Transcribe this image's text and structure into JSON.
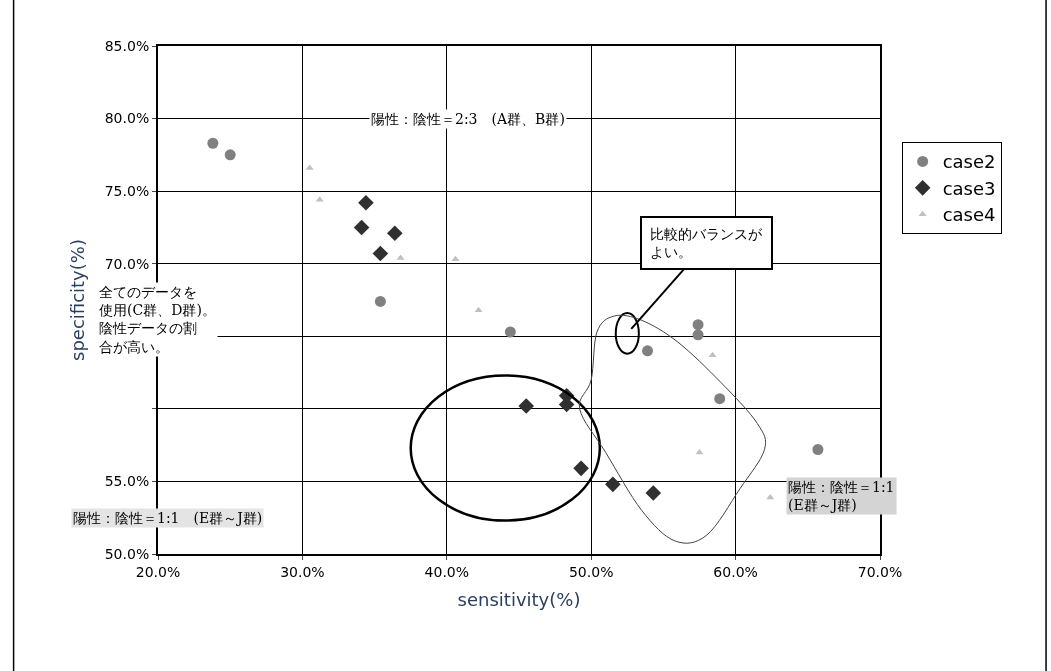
{
  "chart_data": {
    "type": "scatter",
    "xlabel": "sensitivity(%)",
    "ylabel": "specificity(%)",
    "xlim": [
      20,
      70
    ],
    "xticks": [
      {
        "value": 20,
        "label": "20.0%"
      },
      {
        "value": 30,
        "label": "30.0%"
      },
      {
        "value": 40,
        "label": "40.0%"
      },
      {
        "value": 50,
        "label": "50.0%"
      },
      {
        "value": 60,
        "label": "60.0%"
      },
      {
        "value": 70,
        "label": "70.0%"
      }
    ],
    "ylim": [
      50,
      85
    ],
    "yticks": [
      {
        "value": 50,
        "label": "50.0%"
      },
      {
        "value": 55,
        "label": "55.0%"
      },
      {
        "value": 60,
        "label": null
      },
      {
        "value": 65,
        "label": null
      },
      {
        "value": 70,
        "label": "70.0%"
      },
      {
        "value": 75,
        "label": "75.0%"
      },
      {
        "value": 80,
        "label": "80.0%"
      },
      {
        "value": 85,
        "label": "85.0%"
      }
    ],
    "grid": true,
    "legend": "right",
    "series": [
      {
        "name": "case2",
        "color": "#808080",
        "marker": "circle",
        "x": [
          23.8,
          25.0,
          35.4,
          44.4,
          53.9,
          57.4,
          57.4,
          58.9,
          65.7
        ],
        "values": [
          78.3,
          77.5,
          67.4,
          65.3,
          64.0,
          65.8,
          65.1,
          60.7,
          57.2
        ]
      },
      {
        "name": "case3",
        "color": "#303030",
        "marker": "diamond",
        "x": [
          34.4,
          34.1,
          36.4,
          35.4,
          45.5,
          48.3,
          48.3,
          49.3,
          51.5,
          54.3
        ],
        "values": [
          74.2,
          72.5,
          72.1,
          70.7,
          60.2,
          60.9,
          60.3,
          55.9,
          54.8,
          54.2
        ]
      },
      {
        "name": "case4",
        "color": "#c0c0c0",
        "marker": "triangle",
        "x": [
          30.5,
          31.2,
          36.8,
          40.6,
          42.2,
          58.4,
          57.5,
          62.4
        ],
        "values": [
          76.6,
          74.4,
          70.4,
          70.3,
          66.8,
          63.7,
          57.0,
          53.9
        ]
      }
    ],
    "annotations": [
      "陽性：陰性＝2:3　(A群、B群)",
      {
        "text": "比較的バランスがよい。",
        "x": 52.5,
        "y": 65.2
      },
      "全てのデータを使用(C群、D群)。陰性データの割合が高い。",
      "陽性：陰性＝1:1　(E群～J群)",
      "陽性：陰性＝1:1\n(E群～J群)"
    ]
  }
}
